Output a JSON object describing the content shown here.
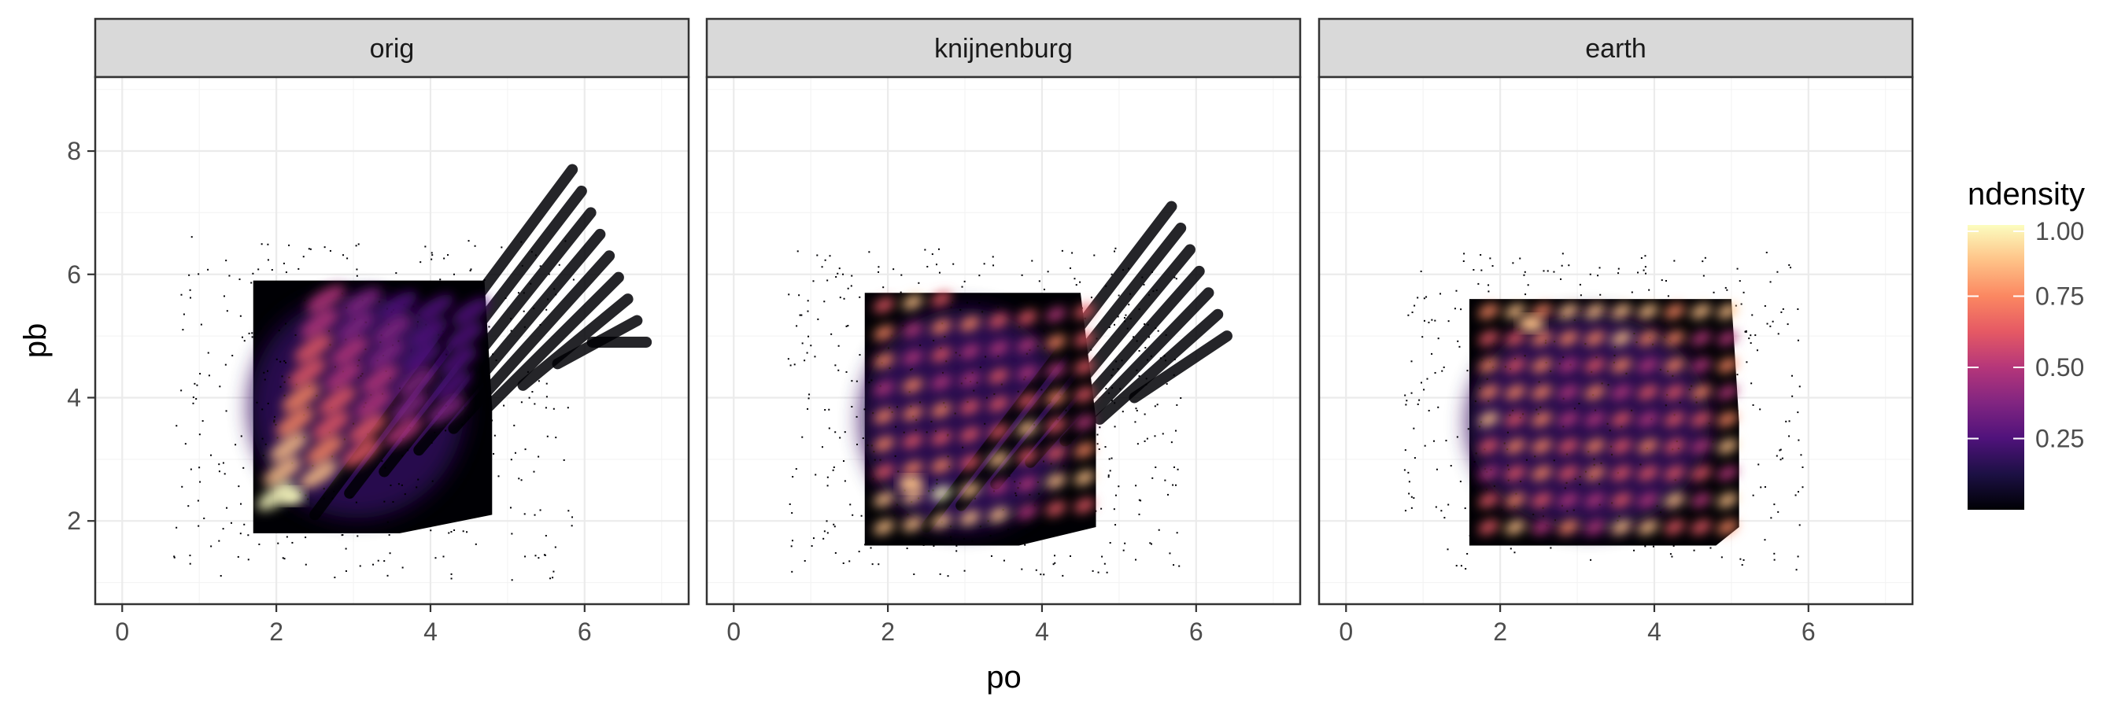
{
  "chart_data": {
    "type": "heatmap",
    "title": "",
    "xlabel": "po",
    "ylabel": "pb",
    "xlim": [
      -0.35,
      7.35
    ],
    "ylim": [
      0.65,
      9.2
    ],
    "x_ticks": [
      0,
      2,
      4,
      6
    ],
    "y_ticks": [
      2,
      4,
      6,
      8
    ],
    "x_tick_labels": [
      "0",
      "2",
      "4",
      "6"
    ],
    "y_tick_labels": [
      "2",
      "4",
      "6",
      "8"
    ],
    "grid": true,
    "theme": "bw",
    "facets": [
      {
        "label": "orig",
        "bulk": {
          "x_range": [
            1.7,
            4.8
          ],
          "y_range": [
            1.8,
            5.9
          ],
          "max_x_at_top": 4.7,
          "max_x_at_bottom": 3.6
        },
        "streaks": {
          "direction": "diagonal",
          "count": 9,
          "tail_x_max": 6.8,
          "tail_y_max": 7.7
        },
        "scatter_extent": {
          "x": [
            0.4,
            6.8
          ],
          "y": [
            1.0,
            7.8
          ]
        },
        "peak": {
          "x": 2.2,
          "y": 2.4,
          "ndensity": 1.0
        }
      },
      {
        "label": "knijnenburg",
        "bulk": {
          "x_range": [
            1.7,
            4.7
          ],
          "y_range": [
            1.6,
            5.7
          ],
          "max_x_at_top": 4.5,
          "max_x_at_bottom": 3.7
        },
        "streaks": {
          "direction": "diagonal",
          "count": 7,
          "tail_x_max": 6.4,
          "tail_y_max": 7.1
        },
        "blob_grid": {
          "columns": 8,
          "rows": 9
        },
        "scatter_extent": {
          "x": [
            0.7,
            6.4
          ],
          "y": [
            1.1,
            7.2
          ]
        },
        "peak": {
          "x": 2.3,
          "y": 2.6,
          "ndensity": 0.9
        }
      },
      {
        "label": "earth",
        "bulk": {
          "x_range": [
            1.6,
            5.1
          ],
          "y_range": [
            1.6,
            5.6
          ],
          "max_x_at_top": 5.0,
          "max_x_at_bottom": 4.8
        },
        "streaks": {
          "direction": "short-diagonal",
          "count": 0,
          "tail_x_max": 5.2,
          "tail_y_max": 5.8
        },
        "blob_grid": {
          "columns": 10,
          "rows": 9
        },
        "scatter_extent": {
          "x": [
            0.3,
            6.6
          ],
          "y": [
            1.2,
            7.8
          ]
        },
        "peak": {
          "x": 2.4,
          "y": 5.2,
          "ndensity": 0.85
        }
      }
    ],
    "legend": {
      "title": "ndensity",
      "placement": "right",
      "labels": [
        "0.25",
        "0.50",
        "0.75",
        "1.00"
      ],
      "values": [
        0.25,
        0.5,
        0.75,
        1.0
      ],
      "colorscale": "magma",
      "colors": [
        "#000004",
        "#1c1044",
        "#4f127b",
        "#812581",
        "#b5367a",
        "#e55964",
        "#fb8761",
        "#fec287",
        "#fcfdbf"
      ]
    }
  }
}
